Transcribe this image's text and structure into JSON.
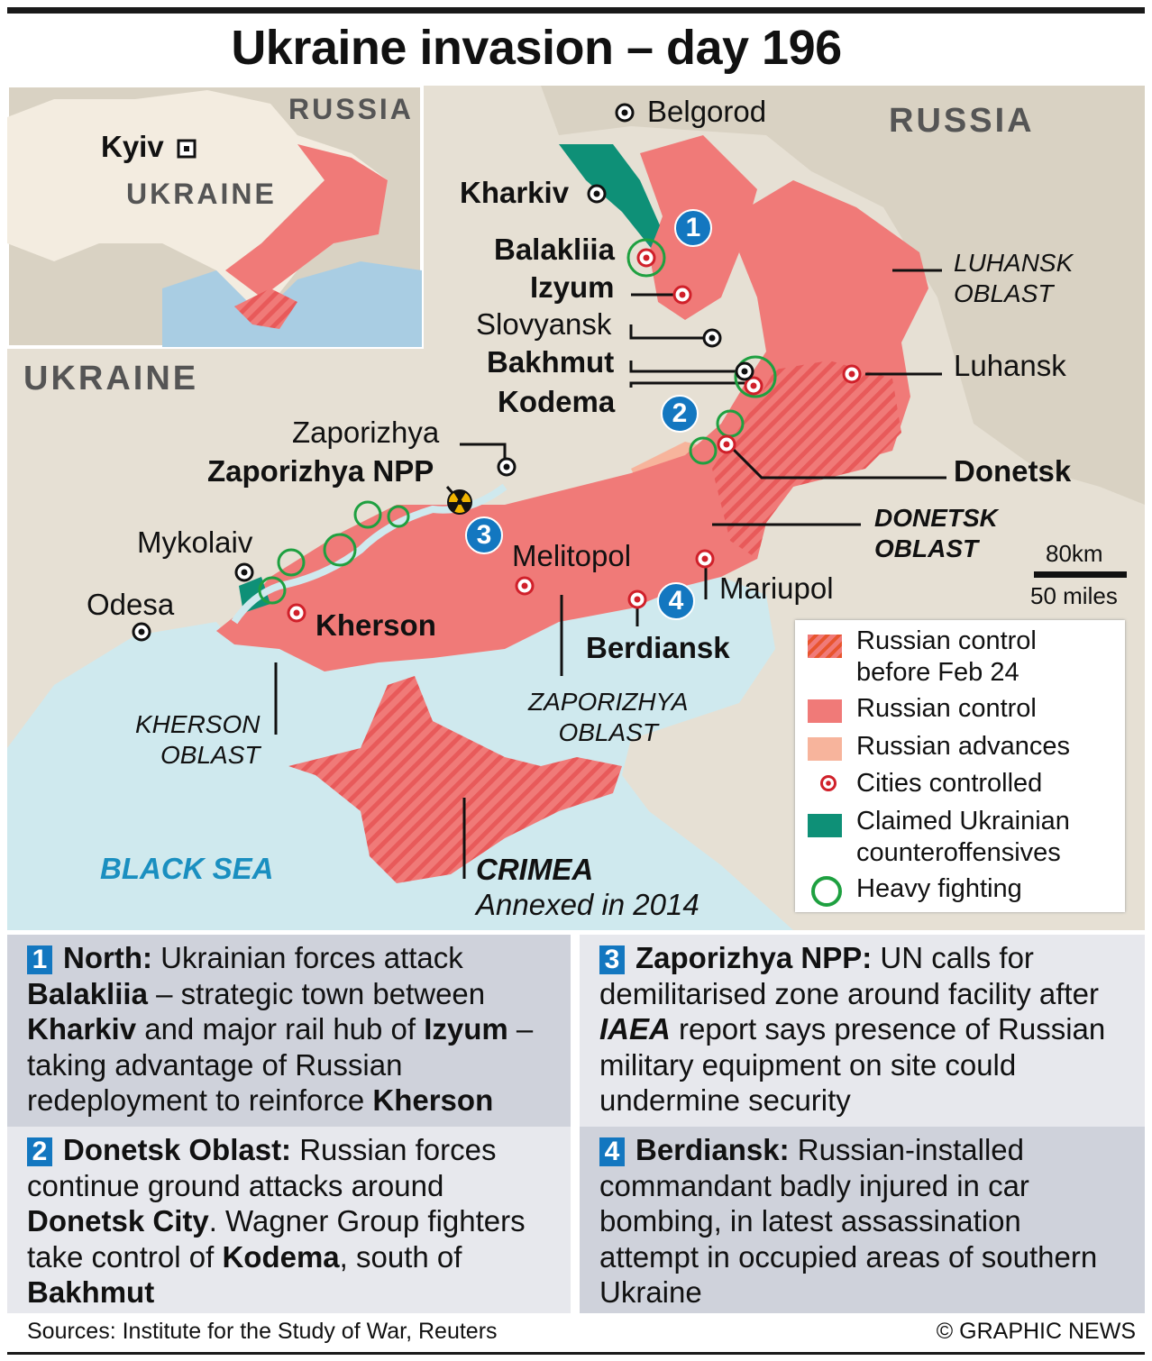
{
  "title": "Ukraine invasion – day 196",
  "colors": {
    "russian_control": "#f07a78",
    "russian_advances": "#f7b49c",
    "claimed_counteroffensive": "#0e9077",
    "heavy_fighting": "#1ea040",
    "marker_number": "#1377c0",
    "sea": "#cfe9ee",
    "land": "#e6e0d4"
  },
  "inset": {
    "kyiv": "Kyiv",
    "ukraine": "UKRAINE",
    "russia": "RUSSIA"
  },
  "map": {
    "ukraine": "UKRAINE",
    "russia": "RUSSIA",
    "black_sea": "BLACK SEA",
    "cities": {
      "belgorod": "Belgorod",
      "kharkiv": "Kharkiv",
      "balakliia": "Balakliia",
      "izyum": "Izyum",
      "slovyansk": "Slovyansk",
      "bakhmut": "Bakhmut",
      "kodema": "Kodema",
      "luhansk": "Luhansk",
      "donetsk": "Donetsk",
      "zaporizhya": "Zaporizhya",
      "zaporizhya_npp": "Zaporizhya NPP",
      "mykolaiv": "Mykolaiv",
      "odesa": "Odesa",
      "kherson": "Kherson",
      "melitopol": "Melitopol",
      "mariupol": "Mariupol",
      "berdiansk": "Berdiansk"
    },
    "regions": {
      "luhansk_oblast": [
        "LUHANSK",
        "OBLAST"
      ],
      "donetsk_oblast": [
        "DONETSK",
        "OBLAST"
      ],
      "zaporizhya_oblast": [
        "ZAPORIZHYA",
        "OBLAST"
      ],
      "kherson_oblast": [
        "KHERSON",
        "OBLAST"
      ],
      "crimea": "CRIMEA",
      "crimea_note": "Annexed in 2014"
    },
    "markers": [
      "1",
      "2",
      "3",
      "4"
    ],
    "scale": {
      "km": "80km",
      "miles": "50 miles"
    }
  },
  "legend": [
    {
      "label": "Russian control before Feb 24",
      "icon": "hatched-swatch"
    },
    {
      "label": "Russian control",
      "icon": "red-swatch"
    },
    {
      "label": "Russian advances",
      "icon": "peach-swatch"
    },
    {
      "label": "Cities controlled",
      "icon": "red-target-icon"
    },
    {
      "label": "Claimed Ukrainian counteroffensives",
      "icon": "teal-swatch"
    },
    {
      "label": "Heavy fighting",
      "icon": "green-ring-icon"
    }
  ],
  "panels": [
    {
      "num": "1",
      "segments": [
        {
          "t": "North:",
          "b": 1
        },
        {
          "t": " Ukrainian forces attack "
        },
        {
          "t": "Balakliia",
          "b": 1
        },
        {
          "t": " – strategic town between "
        },
        {
          "t": "Kharkiv",
          "b": 1
        },
        {
          "t": " and major rail hub of "
        },
        {
          "t": "Izyum",
          "b": 1
        },
        {
          "t": " – taking advantage of Russian redeployment to reinforce "
        },
        {
          "t": "Kherson",
          "b": 1
        }
      ]
    },
    {
      "num": "2",
      "segments": [
        {
          "t": "Donetsk Oblast:",
          "b": 1
        },
        {
          "t": " Russian forces continue ground attacks around "
        },
        {
          "t": "Donetsk City",
          "b": 1
        },
        {
          "t": ". Wagner Group fighters take control of "
        },
        {
          "t": "Kodema",
          "b": 1
        },
        {
          "t": ", south of "
        },
        {
          "t": "Bakhmut",
          "b": 1
        }
      ]
    },
    {
      "num": "3",
      "segments": [
        {
          "t": "Zaporizhya NPP:",
          "b": 1
        },
        {
          "t": " UN calls for demilitarised zone around facility after "
        },
        {
          "t": "IAEA",
          "b": 1,
          "i": 1
        },
        {
          "t": " report says presence of Russian military equipment on site could undermine security"
        }
      ]
    },
    {
      "num": "4",
      "segments": [
        {
          "t": "Berdiansk:",
          "b": 1
        },
        {
          "t": " Russian-installed commandant badly injured in car bombing, in latest assassination attempt in occupied areas of southern Ukraine"
        }
      ]
    }
  ],
  "footer": {
    "sources": "Sources: Institute for the Study of War, Reuters",
    "credit": "© GRAPHIC NEWS"
  }
}
